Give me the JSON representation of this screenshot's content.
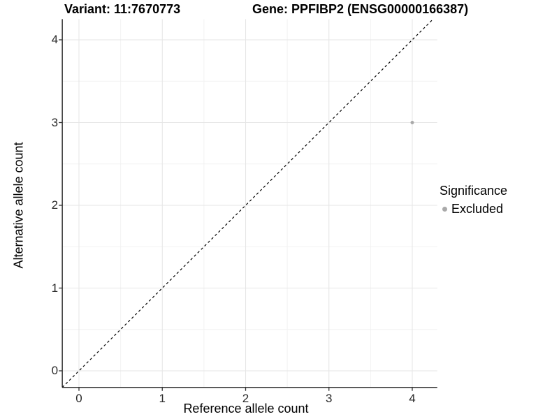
{
  "titles": {
    "variant": "Variant: 11:7670773",
    "gene": "Gene: PPFIBP2 (ENSG00000166387)"
  },
  "chart_data": {
    "type": "scatter",
    "title_left": "Variant: 11:7670773",
    "title_right": "Gene: PPFIBP2 (ENSG00000166387)",
    "xlabel": "Reference allele count",
    "ylabel": "Alternative allele count",
    "xlim": [
      -0.2,
      4.3
    ],
    "ylim": [
      -0.2,
      4.25
    ],
    "x_ticks": [
      0,
      1,
      2,
      3,
      4
    ],
    "y_ticks": [
      0,
      1,
      2,
      3,
      4
    ],
    "x_minor_ticks": [
      0.5,
      1.5,
      2.5,
      3.5
    ],
    "y_minor_ticks": [
      0.5,
      1.5,
      2.5,
      3.5
    ],
    "grid": true,
    "series": [
      {
        "name": "Excluded",
        "color": "#a9a9a9",
        "points": [
          {
            "x": 4,
            "y": 3
          }
        ]
      }
    ],
    "reference_line": {
      "type": "identity",
      "slope": 1,
      "intercept": 0,
      "style": "dashed",
      "color": "#000000"
    },
    "legend": {
      "title": "Significance",
      "position": "right",
      "entries": [
        {
          "label": "Excluded",
          "color": "#a9a9a9"
        }
      ]
    }
  },
  "colors": {
    "background": "#ffffff",
    "grid_major": "#e6e6e6",
    "grid_minor": "#f2f2f2",
    "axis_line": "#333333",
    "tick_mark": "#333333",
    "point": "#a9a9a9",
    "dashed_line": "#000000"
  }
}
